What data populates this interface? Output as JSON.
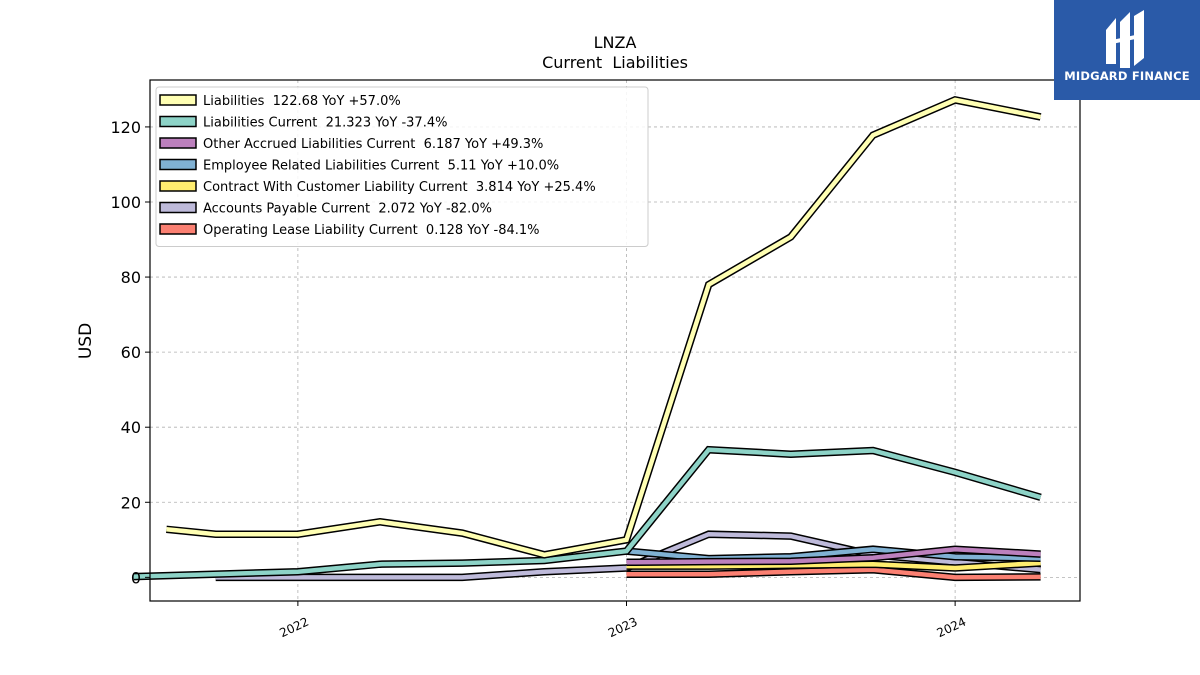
{
  "chart_data": {
    "type": "line",
    "title": "LNZA",
    "subtitle": "Current  Liabilities",
    "ylabel": "USD",
    "xlabel": "",
    "xlim": [
      2021.55,
      2024.38
    ],
    "ylim": [
      -6.3,
      132.5
    ],
    "yticks": [
      0,
      20,
      40,
      60,
      80,
      100,
      120
    ],
    "xticks": [
      2022,
      2023,
      2024
    ],
    "grid": true,
    "legend_position": "top-left",
    "series": [
      {
        "name": "Liabilities  122.68 YoY +57.0%",
        "color": "#ffffb3",
        "x": [
          2021.6,
          2021.75,
          2022.0,
          2022.25,
          2022.5,
          2022.75,
          2023.0,
          2023.25,
          2023.5,
          2023.75,
          2024.0,
          2024.26
        ],
        "y": [
          12.8,
          11.5,
          11.5,
          14.8,
          11.8,
          6.0,
          10.0,
          78.0,
          90.7,
          117.8,
          127.2,
          122.68
        ]
      },
      {
        "name": "Liabilities Current  21.323 YoY -37.4%",
        "color": "#8dd3c7",
        "x": [
          2021.5,
          2022.0,
          2022.25,
          2022.5,
          2022.75,
          2023.0,
          2023.25,
          2023.5,
          2023.75,
          2024.0,
          2024.26
        ],
        "y": [
          0.2,
          1.5,
          3.5,
          3.8,
          4.5,
          7.0,
          34.0,
          32.8,
          33.8,
          28.0,
          21.323
        ]
      },
      {
        "name": "Other Accrued Liabilities Current  6.187 YoY +49.3%",
        "color": "#bc80bd",
        "x": [
          2023.0,
          2023.25,
          2023.5,
          2023.75,
          2024.0,
          2024.26
        ],
        "y": [
          4.0,
          4.2,
          4.3,
          5.2,
          7.5,
          6.187
        ]
      },
      {
        "name": "Employee Related Liabilities Current  5.11 YoY +10.0%",
        "color": "#80b1d3",
        "x": [
          2023.0,
          2023.25,
          2023.5,
          2023.75,
          2024.0,
          2024.26
        ],
        "y": [
          7.0,
          5.0,
          5.5,
          7.5,
          5.5,
          5.11
        ]
      },
      {
        "name": "Contract With Customer Liability Current  3.814 YoY +25.4%",
        "color": "#ffed6f",
        "x": [
          2023.0,
          2023.25,
          2023.5,
          2023.75,
          2024.0,
          2024.26
        ],
        "y": [
          3.0,
          3.0,
          3.2,
          3.5,
          2.5,
          3.814
        ]
      },
      {
        "name": "Accounts Payable Current  2.072 YoY -82.0%",
        "color": "#bebada",
        "x": [
          2021.75,
          2022.0,
          2022.5,
          2022.75,
          2023.0,
          2023.25,
          2023.5,
          2023.75,
          2024.0,
          2024.26
        ],
        "y": [
          0.0,
          0.0,
          0.0,
          1.5,
          2.5,
          11.5,
          11.0,
          6.0,
          4.0,
          2.072
        ]
      },
      {
        "name": "Operating Lease Liability Current  0.128 YoY -84.1%",
        "color": "#fb8072",
        "x": [
          2023.0,
          2023.25,
          2023.5,
          2023.75,
          2024.0,
          2024.26
        ],
        "y": [
          0.8,
          0.8,
          1.5,
          2.0,
          0.0,
          0.128
        ]
      }
    ]
  },
  "logo": {
    "text": "MIDGARD FINANCE",
    "icon": "midgard-logo-icon",
    "background": "#2a5aa8"
  }
}
